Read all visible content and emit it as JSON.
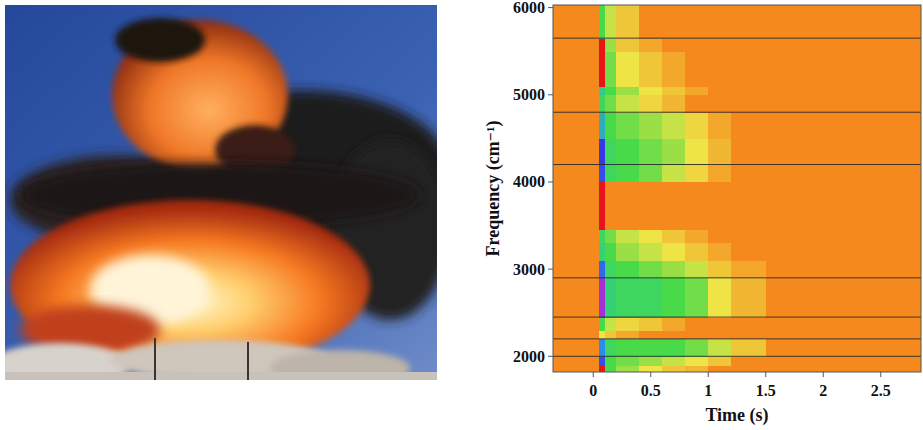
{
  "chart_data": {
    "type": "heatmap",
    "xlabel": "Time (s)",
    "ylabel": "Frequency (cm⁻¹)",
    "xlim": [
      -0.35,
      2.85
    ],
    "ylim": [
      1820,
      6030
    ],
    "xticks": [
      0,
      0.5,
      1,
      1.5,
      2,
      2.5
    ],
    "yticks": [
      2000,
      3000,
      4000,
      5000,
      6000
    ],
    "x_bins": [
      -0.35,
      0.05,
      0.1,
      0.2,
      0.4,
      0.6,
      0.8,
      1.0,
      1.2,
      1.5,
      2.85
    ],
    "y_bins": [
      1820,
      1900,
      2000,
      2200,
      2300,
      2450,
      2900,
      3100,
      3300,
      3450,
      4000,
      4200,
      4500,
      4800,
      5000,
      5100,
      5500,
      5650,
      6030
    ],
    "cells": [
      [
        0,
        1,
        0.5,
        0.4,
        0.3,
        0.2,
        0.15,
        0,
        0,
        0
      ],
      [
        0,
        0.8,
        0.5,
        0.45,
        0.4,
        0.35,
        0.3,
        0.2,
        0,
        0
      ],
      [
        0,
        0.75,
        0.55,
        0.5,
        0.5,
        0.5,
        0.45,
        0.35,
        0.2,
        0
      ],
      [
        0,
        0.3,
        0.2,
        0.1,
        0,
        0,
        0,
        0,
        0,
        0
      ],
      [
        0,
        0.5,
        0.35,
        0.25,
        0.2,
        0.1,
        0,
        0,
        0,
        0
      ],
      [
        0,
        0.88,
        0.6,
        0.55,
        0.55,
        0.5,
        0.45,
        0.3,
        0.15,
        0
      ],
      [
        0,
        0.78,
        0.55,
        0.5,
        0.45,
        0.4,
        0.35,
        0.2,
        0.1,
        0
      ],
      [
        0,
        0.6,
        0.5,
        0.4,
        0.35,
        0.3,
        0.2,
        0.1,
        0,
        0
      ],
      [
        0,
        0.55,
        0.45,
        0.35,
        0.3,
        0.2,
        0.1,
        0,
        0,
        0
      ],
      [
        0,
        1,
        0,
        0,
        0,
        0,
        0,
        0,
        0,
        0
      ],
      [
        0,
        0.8,
        0.55,
        0.5,
        0.45,
        0.35,
        0.25,
        0.1,
        0,
        0
      ],
      [
        0,
        0.82,
        0.55,
        0.5,
        0.45,
        0.4,
        0.3,
        0.15,
        0,
        0
      ],
      [
        0,
        0.7,
        0.5,
        0.45,
        0.4,
        0.35,
        0.25,
        0.1,
        0,
        0
      ],
      [
        0,
        0.55,
        0.45,
        0.35,
        0.25,
        0.15,
        0,
        0,
        0,
        0
      ],
      [
        0,
        0.65,
        0.5,
        0.4,
        0.3,
        0.2,
        0.1,
        0,
        0,
        0
      ],
      [
        0,
        1,
        0.45,
        0.3,
        0.2,
        0.1,
        0,
        0,
        0,
        0
      ],
      [
        0,
        1,
        0.4,
        0.2,
        0.1,
        0,
        0,
        0,
        0,
        0
      ],
      [
        0,
        0.5,
        0.35,
        0.2,
        0,
        0,
        0,
        0,
        0,
        0
      ]
    ],
    "hlines": [
      5650,
      4800,
      4200,
      2900,
      2450,
      2200,
      2000
    ]
  }
}
